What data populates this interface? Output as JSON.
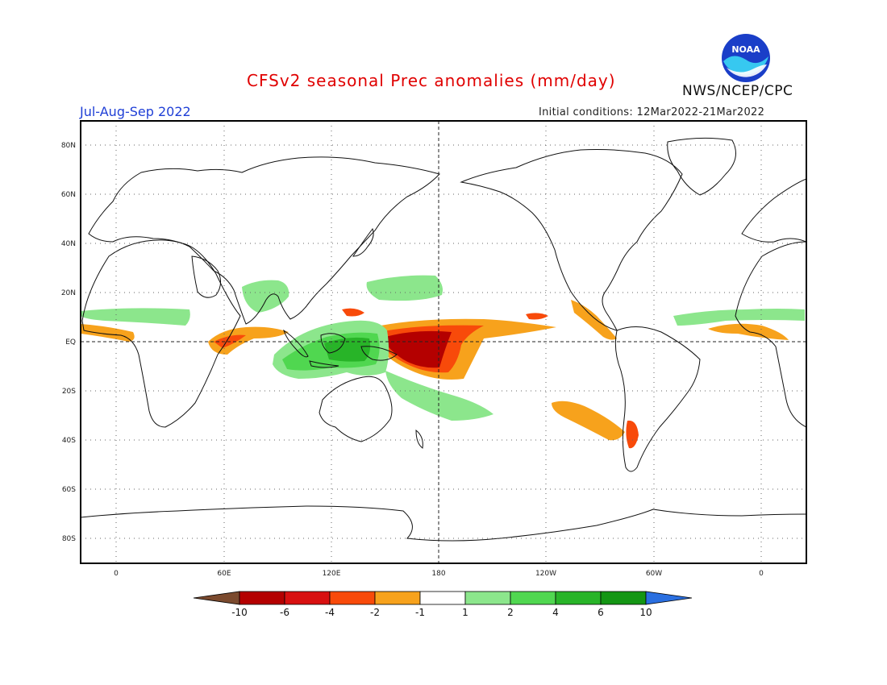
{
  "header": {
    "title": "CFSv2 seasonal Prec anomalies (mm/day)",
    "season": "Jul-Aug-Sep 2022",
    "initial_conditions": "Initial conditions: 12Mar2022-21Mar2022",
    "agency": "NWS/NCEP/CPC",
    "logo_text": "NOAA"
  },
  "axes": {
    "lat_labels": [
      "80N",
      "60N",
      "40N",
      "20N",
      "EQ",
      "20S",
      "40S",
      "60S",
      "80S"
    ],
    "lon_labels": [
      "0",
      "60E",
      "120E",
      "180",
      "120W",
      "60W",
      "0"
    ]
  },
  "colorbar": {
    "labels": [
      "-10",
      "-6",
      "-4",
      "-2",
      "-1",
      "1",
      "2",
      "4",
      "6",
      "10"
    ],
    "colors": [
      "#7b4a2e",
      "#b40000",
      "#d81010",
      "#f84a0a",
      "#f7a21c",
      "#ffffff",
      "#8ce68c",
      "#50d750",
      "#28b428",
      "#149614",
      "#2a6fe0"
    ]
  },
  "colors": {
    "title": "#e00000",
    "season": "#1f3fd6",
    "noaa_blue": "#1a3ec8",
    "noaa_cyan": "#37c8f0"
  }
}
